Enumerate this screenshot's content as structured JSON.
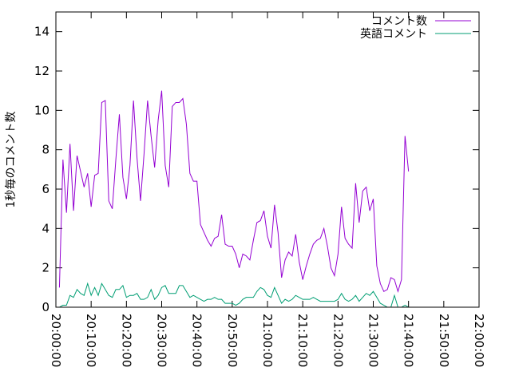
{
  "chart_data": {
    "type": "line",
    "title": "",
    "xlabel": "",
    "ylabel": "1秒毎のコメント数",
    "ylim": [
      0,
      15
    ],
    "yticks": [
      0,
      2,
      4,
      6,
      8,
      10,
      12,
      14
    ],
    "xlim": [
      "20:00:00",
      "22:00:00"
    ],
    "xticks": [
      "20:00:00",
      "20:10:00",
      "20:20:00",
      "20:30:00",
      "20:40:00",
      "20:50:00",
      "21:00:00",
      "21:10:00",
      "21:20:00",
      "21:30:00",
      "21:40:00",
      "21:50:00",
      "22:00:00"
    ],
    "grid": false,
    "legend_position": "top-right",
    "sample_interval": "1 minute",
    "series": [
      {
        "name": "コメント数",
        "color": "#9400d3",
        "x_start": "20:01:00",
        "values": [
          1.0,
          7.5,
          4.8,
          8.3,
          4.9,
          7.7,
          6.9,
          6.1,
          6.8,
          5.1,
          6.7,
          6.8,
          10.4,
          10.5,
          5.4,
          5.0,
          7.5,
          9.8,
          6.6,
          5.5,
          7.2,
          10.5,
          7.6,
          5.4,
          7.8,
          10.5,
          8.7,
          7.1,
          9.5,
          11.0,
          7.2,
          6.1,
          10.2,
          10.4,
          10.4,
          10.6,
          9.3,
          6.8,
          6.4,
          6.4,
          4.2,
          3.8,
          3.4,
          3.1,
          3.5,
          3.6,
          4.7,
          3.2,
          3.1,
          3.1,
          2.7,
          2.0,
          2.7,
          2.6,
          2.4,
          3.4,
          4.3,
          4.4,
          4.9,
          3.6,
          3.0,
          5.2,
          3.8,
          1.5,
          2.4,
          2.8,
          2.6,
          3.7,
          2.3,
          1.4,
          2.1,
          2.7,
          3.2,
          3.4,
          3.5,
          4.0,
          3.1,
          2.0,
          1.6,
          2.7,
          5.1,
          3.5,
          3.2,
          3.0,
          6.3,
          4.3,
          5.9,
          6.1,
          4.9,
          5.5,
          2.1,
          1.2,
          0.8,
          0.9,
          1.5,
          1.4,
          0.8,
          1.4,
          8.7,
          6.9
        ]
      },
      {
        "name": "英語コメント",
        "color": "#009e73",
        "x_start": "20:01:00",
        "values": [
          0.0,
          0.1,
          0.1,
          0.6,
          0.5,
          0.9,
          0.7,
          0.6,
          1.2,
          0.6,
          1.0,
          0.6,
          1.2,
          0.9,
          0.6,
          0.5,
          0.9,
          0.9,
          1.1,
          0.5,
          0.6,
          0.6,
          0.7,
          0.4,
          0.4,
          0.5,
          0.9,
          0.4,
          0.6,
          1.0,
          1.1,
          0.7,
          0.7,
          0.7,
          1.1,
          1.1,
          0.8,
          0.5,
          0.6,
          0.5,
          0.4,
          0.3,
          0.4,
          0.4,
          0.5,
          0.4,
          0.4,
          0.2,
          0.2,
          0.2,
          0.1,
          0.2,
          0.4,
          0.5,
          0.5,
          0.5,
          0.8,
          1.0,
          0.9,
          0.6,
          0.5,
          1.0,
          0.6,
          0.2,
          0.4,
          0.3,
          0.4,
          0.6,
          0.5,
          0.4,
          0.4,
          0.4,
          0.5,
          0.4,
          0.3,
          0.3,
          0.3,
          0.3,
          0.3,
          0.4,
          0.7,
          0.4,
          0.3,
          0.4,
          0.6,
          0.3,
          0.5,
          0.7,
          0.6,
          0.8,
          0.5,
          0.2,
          0.1,
          0.0,
          0.0,
          0.6,
          0.0,
          0.0,
          0.1,
          0.0
        ]
      }
    ]
  }
}
